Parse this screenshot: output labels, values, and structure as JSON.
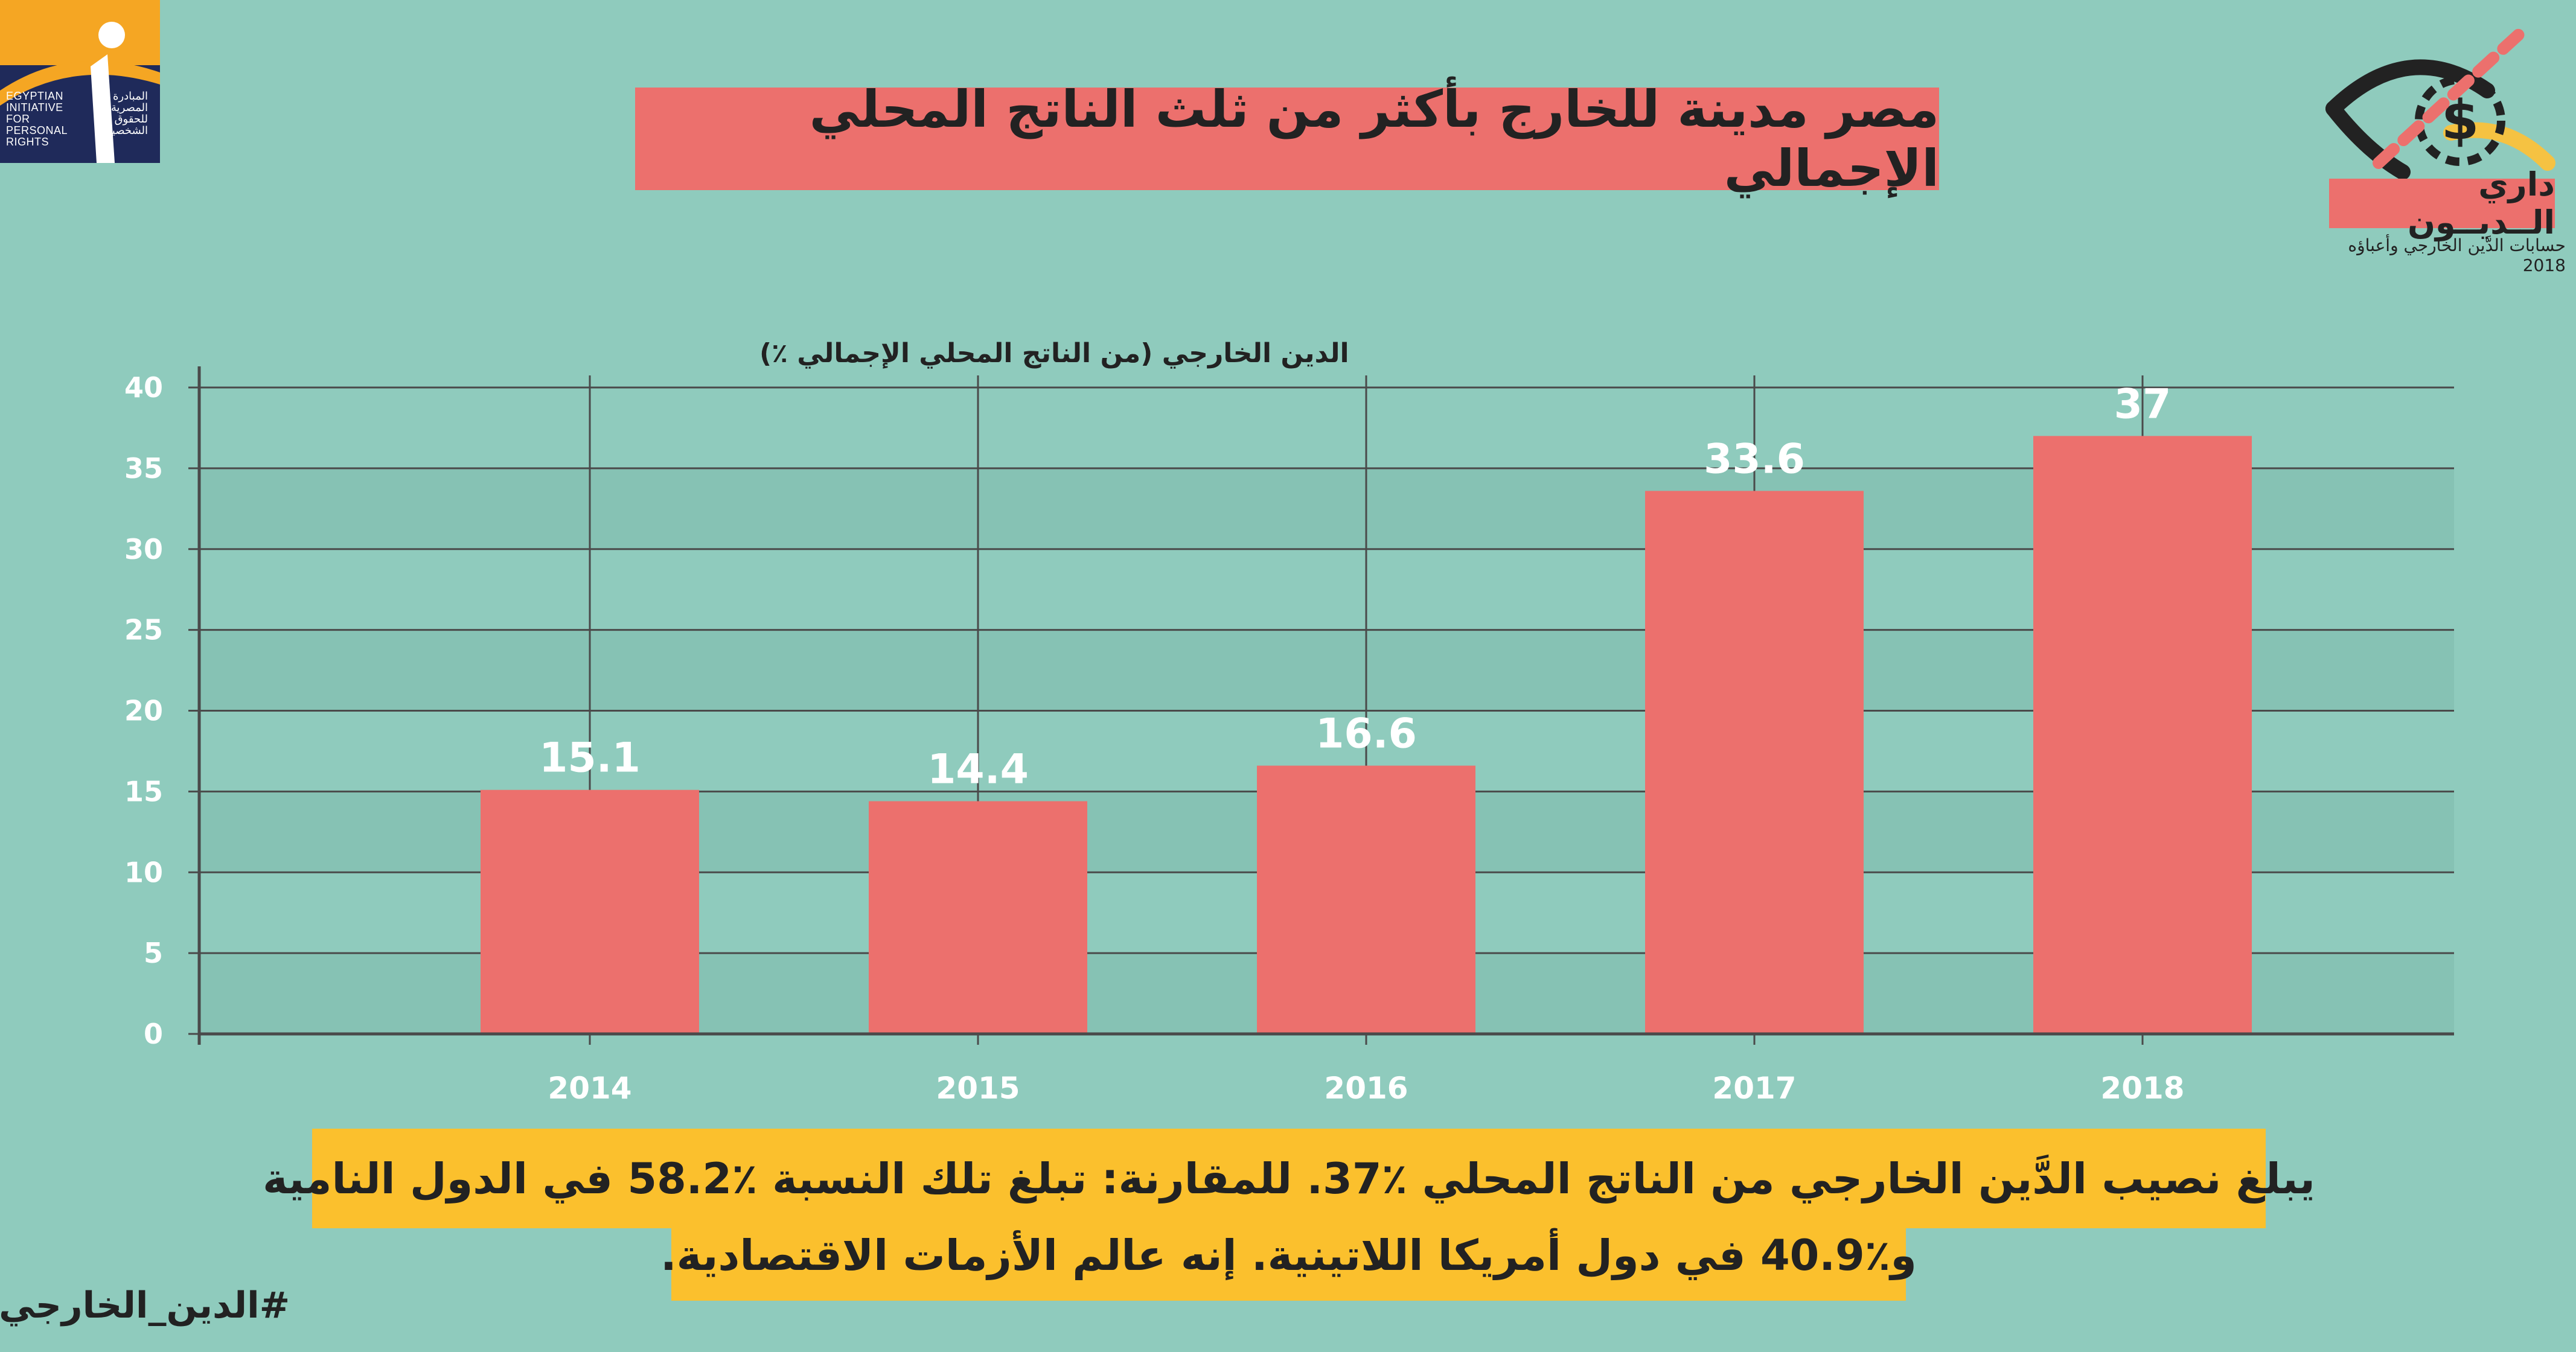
{
  "logo_left": {
    "caption_en": "EGYPTIAN\nINITIATIVE\nFOR\nPERSONAL\nRIGHTS",
    "caption_ar": "المبادرة\nالمصرية\nللحقوق\nالشخصية",
    "icon": "eipr-logo-icon"
  },
  "title": "مصر مدينة للخارج بأكثر من ثلث الناتج المحلي الإجمالي",
  "brand": {
    "name": "داري الــديــون",
    "subtitle": "حسابات الدَّين الخارجي وأعباؤه 2018",
    "icon": "eye-dollar-icon",
    "colors": {
      "coral": "#ec706d",
      "navy": "#222222",
      "gold": "#f5c242"
    }
  },
  "chart_data": {
    "type": "bar",
    "ylabel": "الدين الخارجي (من الناتج المحلي الإجمالي ٪)",
    "xlabel": "",
    "categories": [
      "2014",
      "2015",
      "2016",
      "2017",
      "2018"
    ],
    "values": [
      15.1,
      14.4,
      16.6,
      33.6,
      37
    ],
    "value_labels": [
      "15.1",
      "14.4",
      "16.6",
      "33.6",
      "37"
    ],
    "y_ticks": [
      "0",
      "5",
      "10",
      "15",
      "20",
      "25",
      "30",
      "35",
      "40"
    ],
    "ylim": [
      0,
      40
    ],
    "grid": true,
    "colors": {
      "bar": "#ec706d",
      "band_light": "#8fcbbd",
      "band_dark": "#86c2b4",
      "grid": "#4a4a4a"
    }
  },
  "summary": {
    "line1": "يبلغ نصيب الدَّين الخارجي من الناتج المحلي ٪37. للمقارنة: تبلغ تلك النسبة ٪58.2 في الدول النامية",
    "line2": "و٪40.9 في دول أمريكا اللاتينية. إنه عالم الأزمات الاقتصادية."
  },
  "hashtag": "#الدين_الخارجي"
}
